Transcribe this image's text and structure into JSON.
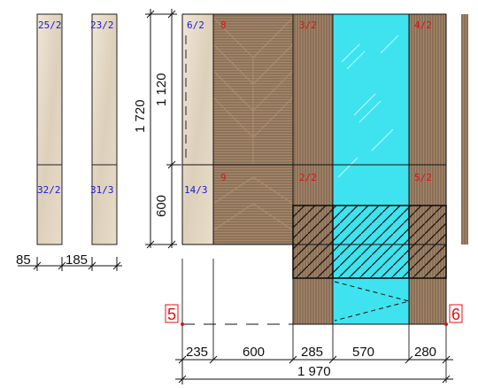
{
  "side_panels": [
    {
      "top_tag": "25/2",
      "bottom_tag": "32/2"
    },
    {
      "top_tag": "23/2",
      "bottom_tag": "31/3"
    }
  ],
  "side_dims": {
    "left": "85",
    "right": "185"
  },
  "vertical_dims": {
    "total": "1 720",
    "upper": "1 120",
    "lower": "600"
  },
  "tiles": {
    "t1_top": "6/2",
    "t1_bottom": "14/3",
    "t2_top": "8",
    "t2_bottom": "9",
    "t3_top": "3/2",
    "t3_bottom": "2/2",
    "t5_top": "4/2",
    "t5_bottom": "5/2"
  },
  "axis_markers": {
    "left": "5",
    "right": "6"
  },
  "bottom_dims": {
    "d1": "235",
    "d2": "600",
    "d3": "285",
    "d4": "570",
    "d5": "280",
    "total": "1 970"
  },
  "colors": {
    "wood": "#8b7058",
    "wood_light": "#a08468",
    "glass": "#3ee3ef",
    "stone": "#e3d8c6",
    "marker": "#e01010"
  }
}
